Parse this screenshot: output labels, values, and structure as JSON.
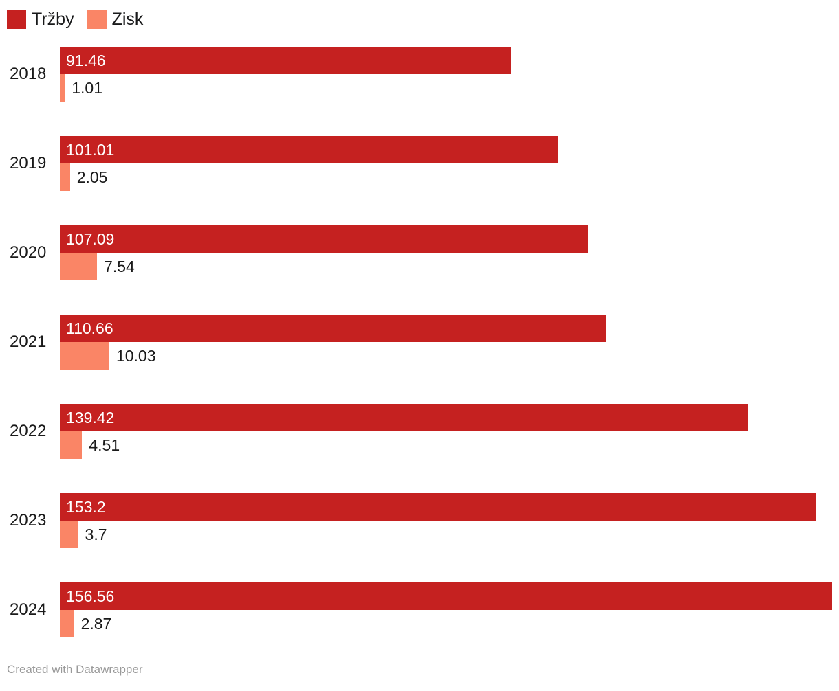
{
  "legend": {
    "items": [
      {
        "label": "Tržby",
        "color": "#c52120"
      },
      {
        "label": "Zisk",
        "color": "#fa8566"
      }
    ]
  },
  "footer": {
    "credit": "Created with Datawrapper"
  },
  "chart_data": {
    "type": "bar",
    "orientation": "horizontal",
    "title": "",
    "xlabel": "",
    "ylabel": "",
    "categories": [
      "2018",
      "2019",
      "2020",
      "2021",
      "2022",
      "2023",
      "2024"
    ],
    "series": [
      {
        "name": "Tržby",
        "color": "#c52120",
        "label_color": "#ffffff",
        "label_position": "inside-start",
        "values": [
          91.46,
          101.01,
          107.09,
          110.66,
          139.42,
          153.2,
          156.56
        ]
      },
      {
        "name": "Zisk",
        "color": "#fa8566",
        "label_color": "#1a1a1a",
        "label_position": "outside-end",
        "values": [
          1.01,
          2.05,
          7.54,
          10.03,
          4.51,
          3.7,
          2.87
        ]
      }
    ],
    "xlim": [
      0,
      156.56
    ],
    "grid": false,
    "legend_position": "top-left",
    "value_labels_shown": true
  }
}
